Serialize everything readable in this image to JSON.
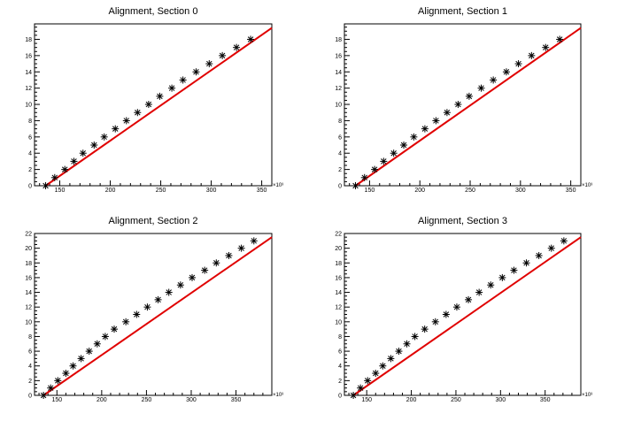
{
  "chart_data": [
    {
      "type": "scatter",
      "title": "Alignment, Section 0",
      "x_multiplier_label": "×10³",
      "xlim": [
        125,
        360
      ],
      "ylim": [
        0,
        19.9
      ],
      "x_ticks": [
        150,
        200,
        250,
        300,
        350
      ],
      "y_ticks": [
        0,
        2,
        4,
        6,
        8,
        10,
        12,
        14,
        16,
        18
      ],
      "marker": "asterisk",
      "grid": false,
      "series": [
        {
          "x": [
            136,
            145,
            155,
            164,
            173,
            184,
            194,
            205,
            216,
            227,
            238,
            249,
            261,
            272,
            285,
            298,
            311,
            325,
            339
          ],
          "y": [
            0,
            1,
            2,
            3,
            4,
            5,
            6,
            7,
            8,
            9,
            10,
            11,
            12,
            13,
            14,
            15,
            16,
            17,
            18
          ],
          "color": "#000000"
        }
      ],
      "fit": {
        "x": [
          136,
          360
        ],
        "y": [
          0,
          19.4
        ],
        "color": "#e00000"
      }
    },
    {
      "type": "scatter",
      "title": "Alignment, Section 1",
      "x_multiplier_label": "×10³",
      "xlim": [
        125,
        360
      ],
      "ylim": [
        0,
        19.9
      ],
      "x_ticks": [
        150,
        200,
        250,
        300,
        350
      ],
      "y_ticks": [
        0,
        2,
        4,
        6,
        8,
        10,
        12,
        14,
        16,
        18
      ],
      "marker": "asterisk",
      "grid": false,
      "series": [
        {
          "x": [
            136,
            145,
            155,
            164,
            174,
            184,
            194,
            205,
            216,
            227,
            238,
            249,
            261,
            273,
            286,
            298,
            311,
            325,
            339
          ],
          "y": [
            0,
            1,
            2,
            3,
            4,
            5,
            6,
            7,
            8,
            9,
            10,
            11,
            12,
            13,
            14,
            15,
            16,
            17,
            18
          ],
          "color": "#000000"
        }
      ],
      "fit": {
        "x": [
          136,
          360
        ],
        "y": [
          0,
          19.4
        ],
        "color": "#e00000"
      }
    },
    {
      "type": "scatter",
      "title": "Alignment, Section 2",
      "x_multiplier_label": "×10³",
      "xlim": [
        125,
        390
      ],
      "ylim": [
        0,
        22
      ],
      "x_ticks": [
        150,
        200,
        250,
        300,
        350
      ],
      "y_ticks": [
        0,
        2,
        4,
        6,
        8,
        10,
        12,
        14,
        16,
        18,
        20,
        22
      ],
      "marker": "asterisk",
      "grid": false,
      "series": [
        {
          "x": [
            135,
            143,
            151,
            160,
            168,
            177,
            186,
            195,
            204,
            214,
            227,
            239,
            251,
            263,
            275,
            288,
            301,
            315,
            328,
            342,
            356,
            370
          ],
          "y": [
            0,
            1,
            2,
            3,
            4,
            5,
            6,
            7,
            8,
            9,
            10,
            11,
            12,
            13,
            14,
            15,
            16,
            17,
            18,
            19,
            20,
            21
          ],
          "color": "#000000"
        }
      ],
      "fit": {
        "x": [
          135,
          390
        ],
        "y": [
          0,
          21.5
        ],
        "color": "#e00000"
      }
    },
    {
      "type": "scatter",
      "title": "Alignment, Section 3",
      "x_multiplier_label": "×10³",
      "xlim": [
        125,
        390
      ],
      "ylim": [
        0,
        22
      ],
      "x_ticks": [
        150,
        200,
        250,
        300,
        350
      ],
      "y_ticks": [
        0,
        2,
        4,
        6,
        8,
        10,
        12,
        14,
        16,
        18,
        20,
        22
      ],
      "marker": "asterisk",
      "grid": false,
      "series": [
        {
          "x": [
            135,
            143,
            151,
            160,
            168,
            177,
            186,
            195,
            204,
            215,
            227,
            239,
            251,
            264,
            276,
            289,
            302,
            315,
            329,
            343,
            357,
            371
          ],
          "y": [
            0,
            1,
            2,
            3,
            4,
            5,
            6,
            7,
            8,
            9,
            10,
            11,
            12,
            13,
            14,
            15,
            16,
            17,
            18,
            19,
            20,
            21
          ],
          "color": "#000000"
        }
      ],
      "fit": {
        "x": [
          135,
          390
        ],
        "y": [
          0,
          21.5
        ],
        "color": "#e00000"
      }
    }
  ]
}
